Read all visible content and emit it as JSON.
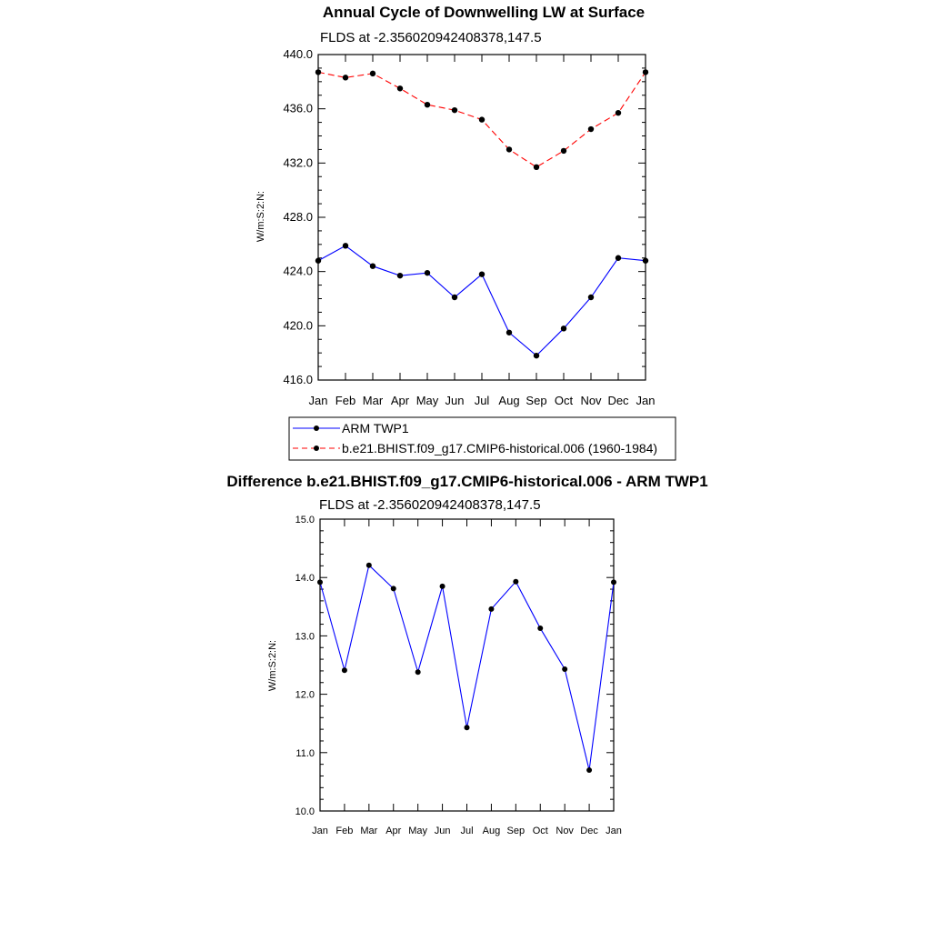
{
  "chart_data": [
    {
      "type": "line",
      "title": "Annual Cycle of Downwelling LW at Surface",
      "subtitle": "FLDS at -2.356020942408378,147.5",
      "ylabel": "W/m:S:2:N:",
      "xlabel": "",
      "ylim": [
        416.0,
        440.0
      ],
      "yticks": [
        "416.0",
        "420.0",
        "424.0",
        "428.0",
        "432.0",
        "436.0",
        "440.0"
      ],
      "categories": [
        "Jan",
        "Feb",
        "Mar",
        "Apr",
        "May",
        "Jun",
        "Jul",
        "Aug",
        "Sep",
        "Oct",
        "Nov",
        "Dec",
        "Jan"
      ],
      "series": [
        {
          "name": "ARM TWP1",
          "color": "#0000ff",
          "dash": "solid",
          "values": [
            424.8,
            425.9,
            424.4,
            423.7,
            423.9,
            422.1,
            423.8,
            419.5,
            417.8,
            419.8,
            422.1,
            425.0,
            424.8
          ]
        },
        {
          "name": "b.e21.BHIST.f09_g17.CMIP6-historical.006 (1960-1984)",
          "color": "#ff0000",
          "dash": "dashed",
          "values": [
            438.7,
            438.3,
            438.6,
            437.5,
            436.3,
            435.9,
            435.2,
            433.0,
            431.7,
            432.9,
            434.5,
            435.7,
            438.7
          ]
        }
      ],
      "legend": "bottom"
    },
    {
      "type": "line",
      "title": "Difference b.e21.BHIST.f09_g17.CMIP6-historical.006 - ARM TWP1",
      "subtitle": "FLDS at -2.356020942408378,147.5",
      "ylabel": "W/m:S:2:N:",
      "xlabel": "",
      "ylim": [
        10.0,
        15.0
      ],
      "yticks": [
        "10.0",
        "11.0",
        "12.0",
        "13.0",
        "14.0",
        "15.0"
      ],
      "categories": [
        "Jan",
        "Feb",
        "Mar",
        "Apr",
        "May",
        "Jun",
        "Jul",
        "Aug",
        "Sep",
        "Oct",
        "Nov",
        "Dec",
        "Jan"
      ],
      "series": [
        {
          "name": "Difference",
          "color": "#0000ff",
          "dash": "solid",
          "values": [
            13.92,
            12.41,
            14.21,
            13.81,
            12.38,
            13.85,
            11.43,
            13.46,
            13.93,
            13.13,
            12.43,
            10.7,
            13.92
          ]
        }
      ]
    }
  ]
}
